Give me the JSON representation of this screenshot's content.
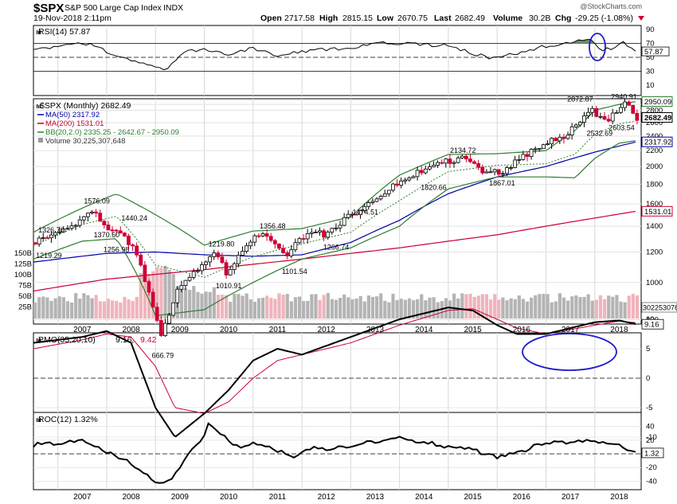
{
  "header": {
    "symbol": "$SPX",
    "name": "S&P 500 Large Cap Index",
    "exchange": "INDX",
    "datetime": "19-Nov-2018 2:11pm",
    "open_label": "Open",
    "open": "2717.58",
    "high_label": "High",
    "high": "2815.15",
    "low_label": "Low",
    "low": "2670.75",
    "last_label": "Last",
    "last": "2682.49",
    "volume_label": "Volume",
    "volume": "30.2B",
    "chg_label": "Chg",
    "chg": "-29.25 (-1.08%)",
    "watermark": "@StockCharts.com"
  },
  "colors": {
    "price_up": "#000000",
    "price_down": "#cc0033",
    "ma50": "#0000aa",
    "ma200": "#cc0033",
    "bb": "#2e7d2e",
    "rsi_fill": "#6b8f6b",
    "rsi_fill_low": "#b46e6e",
    "vol_up": "#b4b4b4",
    "vol_down": "#f0b4bc",
    "highlight": "#1a1acc"
  },
  "rsi_panel": {
    "legend": "RSI(14) 57.87",
    "current_label": "57.87",
    "ticks": [
      "90",
      "70",
      "50",
      "30",
      "10"
    ]
  },
  "price_panel": {
    "legend": {
      "price": "$SPX (Monthly) 2682.49",
      "ma50": "MA(50) 2317.92",
      "ma200": "MA(200) 1531.01",
      "bb": "BB(20,2.0) 2335.25 - 2642.67 - 2950.09",
      "volume": "Volume 30,225,307,648"
    },
    "right_ticks": [
      "2900",
      "2800",
      "2600",
      "2400",
      "2200",
      "2000",
      "1800",
      "1600",
      "1400",
      "1200",
      "1000",
      "800"
    ],
    "left_vol_ticks": [
      "150B",
      "125B",
      "100B",
      "75B",
      "50B",
      "25B"
    ],
    "right_labels": {
      "bb_upper": "2950.09",
      "last": "2682.49",
      "ma50": "2317.92",
      "ma200": "1531.01",
      "volume": "30225307648"
    },
    "annotations": [
      {
        "text": "1326.70"
      },
      {
        "text": "1219.29"
      },
      {
        "text": "1576.09"
      },
      {
        "text": "1440.24"
      },
      {
        "text": "1370.60"
      },
      {
        "text": "1256.98"
      },
      {
        "text": "666.79"
      },
      {
        "text": "1219.80"
      },
      {
        "text": "1010.91"
      },
      {
        "text": "1356.48"
      },
      {
        "text": "1101.54"
      },
      {
        "text": "1266.74"
      },
      {
        "text": "1474.51"
      },
      {
        "text": "1820.66"
      },
      {
        "text": "2134.72"
      },
      {
        "text": "1867.01"
      },
      {
        "text": "2872.87"
      },
      {
        "text": "2940.91"
      },
      {
        "text": "2532.69"
      },
      {
        "text": "2603.54"
      }
    ]
  },
  "x_axis": {
    "years": [
      "2007",
      "2008",
      "2009",
      "2010",
      "2011",
      "2012",
      "2013",
      "2014",
      "2015",
      "2016",
      "2017",
      "2018"
    ]
  },
  "pmo_panel": {
    "legend_a": "PMO(35,20,10)",
    "legend_b": "9.16,",
    "legend_c": "9.42",
    "current_label": "9.16",
    "ticks": [
      "10",
      "5",
      "0",
      "-5",
      "-10"
    ]
  },
  "roc_panel": {
    "legend": "ROC(12) 1.32%",
    "current_label": "1.32",
    "ticks": [
      "40",
      "20",
      "0",
      "-20",
      "-40"
    ]
  },
  "chart_data": {
    "type": "line",
    "title": "$SPX S&P 500 Large Cap Index INDX",
    "subtitle": "19-Nov-2018 2:11pm",
    "xlabel": "",
    "ylabel": "",
    "x_range": [
      "2006-06",
      "2018-11"
    ],
    "price_scale": "log",
    "ylim_price": [
      780,
      3000
    ],
    "series": [
      {
        "name": "$SPX (Monthly)",
        "x": [
          2006.5,
          2007.0,
          2007.5,
          2007.8,
          2008.0,
          2008.4,
          2008.7,
          2009.0,
          2009.17,
          2009.5,
          2010.0,
          2010.3,
          2010.5,
          2011.0,
          2011.3,
          2011.7,
          2012.0,
          2012.3,
          2012.5,
          2013.0,
          2013.5,
          2014.0,
          2014.5,
          2014.8,
          2015.0,
          2015.4,
          2015.7,
          2016.0,
          2016.1,
          2016.5,
          2017.0,
          2017.5,
          2018.0,
          2018.1,
          2018.3,
          2018.5,
          2018.7,
          2018.85
        ],
        "values": [
          1270,
          1330,
          1440,
          1540,
          1400,
          1330,
          1160,
          850,
          720,
          950,
          1110,
          1190,
          1060,
          1290,
          1350,
          1160,
          1300,
          1370,
          1330,
          1480,
          1620,
          1820,
          1960,
          2010,
          2060,
          2100,
          1950,
          1940,
          1900,
          2100,
          2280,
          2430,
          2820,
          2700,
          2640,
          2800,
          2920,
          2682.49
        ]
      },
      {
        "name": "MA(50)",
        "x": [
          2006.5,
          2008.0,
          2009.0,
          2010.0,
          2011.0,
          2012.0,
          2013.0,
          2014.0,
          2015.0,
          2016.0,
          2017.0,
          2018.0,
          2018.85
        ],
        "values": [
          1130,
          1190,
          1200,
          1180,
          1170,
          1180,
          1270,
          1450,
          1700,
          1880,
          2000,
          2180,
          2317.92
        ]
      },
      {
        "name": "MA(200)",
        "x": [
          2006.5,
          2008.0,
          2010.0,
          2012.0,
          2014.0,
          2016.0,
          2018.0,
          2018.85
        ],
        "values": [
          950,
          1020,
          1080,
          1150,
          1230,
          1330,
          1470,
          1531.01
        ]
      },
      {
        "name": "BB(20,2.0) upper",
        "x": [
          2006.5,
          2007.5,
          2008.2,
          2009.0,
          2010.0,
          2011.0,
          2012.0,
          2013.0,
          2014.0,
          2015.0,
          2016.0,
          2017.0,
          2017.6,
          2018.0,
          2018.5,
          2018.85
        ],
        "values": [
          1350,
          1560,
          1700,
          1500,
          1250,
          1360,
          1380,
          1480,
          1900,
          2150,
          2160,
          2200,
          2480,
          2800,
          2900,
          2950.09
        ]
      },
      {
        "name": "BB(20,2.0) lower",
        "x": [
          2006.5,
          2007.5,
          2008.2,
          2009.0,
          2010.0,
          2011.0,
          2012.0,
          2013.0,
          2014.0,
          2015.0,
          2016.0,
          2017.0,
          2017.6,
          2018.0,
          2018.5,
          2018.85
        ],
        "values": [
          1150,
          1280,
          1300,
          820,
          850,
          1000,
          1150,
          1230,
          1400,
          1750,
          1880,
          1880,
          1870,
          2100,
          2300,
          2335.25
        ]
      },
      {
        "name": "RSI(14)",
        "x": [
          2006.5,
          2007.0,
          2007.7,
          2008.0,
          2008.5,
          2008.9,
          2009.2,
          2009.6,
          2010.0,
          2010.5,
          2011.0,
          2011.5,
          2012.0,
          2013.0,
          2013.5,
          2014.0,
          2014.5,
          2015.0,
          2015.5,
          2015.9,
          2016.2,
          2016.6,
          2017.0,
          2017.5,
          2017.9,
          2018.1,
          2018.3,
          2018.6,
          2018.85
        ],
        "values": [
          62,
          66,
          70,
          58,
          47,
          38,
          32,
          58,
          62,
          55,
          63,
          52,
          58,
          64,
          70,
          70,
          68,
          67,
          56,
          48,
          52,
          60,
          66,
          72,
          78,
          60,
          62,
          72,
          57.87
        ]
      },
      {
        "name": "PMO(35,20,10)",
        "x": [
          2006.5,
          2007.5,
          2008.0,
          2008.5,
          2009.0,
          2009.4,
          2010.0,
          2010.5,
          2011.0,
          2011.5,
          2012.0,
          2013.0,
          2014.0,
          2015.0,
          2015.5,
          2016.0,
          2016.4,
          2017.0,
          2018.0,
          2018.5,
          2018.85
        ],
        "values": [
          6,
          7,
          8,
          6,
          -5,
          -10,
          -6,
          -2,
          3,
          5,
          4,
          7,
          10,
          12,
          11.5,
          9,
          7.5,
          7.5,
          9.5,
          9.8,
          9.16
        ]
      },
      {
        "name": "PMO signal",
        "x": [
          2006.5,
          2007.5,
          2008.0,
          2008.5,
          2009.0,
          2009.4,
          2010.0,
          2010.5,
          2011.0,
          2011.5,
          2012.0,
          2013.0,
          2014.0,
          2015.0,
          2015.5,
          2016.0,
          2016.4,
          2017.0,
          2018.0,
          2018.5,
          2018.85
        ],
        "values": [
          5,
          6.5,
          7.5,
          7,
          2,
          -5,
          -6,
          -4,
          0,
          3,
          4,
          6,
          9,
          11.5,
          11.8,
          10,
          8.5,
          7.5,
          9,
          9.7,
          9.42
        ]
      },
      {
        "name": "ROC(12)",
        "x": [
          2006.5,
          2007.0,
          2007.5,
          2008.0,
          2008.4,
          2008.8,
          2009.0,
          2009.2,
          2009.5,
          2009.8,
          2010.0,
          2010.1,
          2010.4,
          2010.7,
          2011.0,
          2011.5,
          2011.8,
          2012.2,
          2012.6,
          2013.0,
          2013.5,
          2014.0,
          2014.5,
          2015.0,
          2015.5,
          2016.0,
          2016.5,
          2017.0,
          2017.5,
          2018.0,
          2018.5,
          2018.85
        ],
        "values": [
          13,
          16,
          18,
          2,
          -10,
          -30,
          -42,
          -45,
          -20,
          10,
          28,
          45,
          25,
          10,
          15,
          5,
          -5,
          10,
          6,
          12,
          18,
          22,
          18,
          10,
          6,
          -5,
          3,
          18,
          16,
          20,
          12,
          1.32
        ]
      }
    ]
  }
}
